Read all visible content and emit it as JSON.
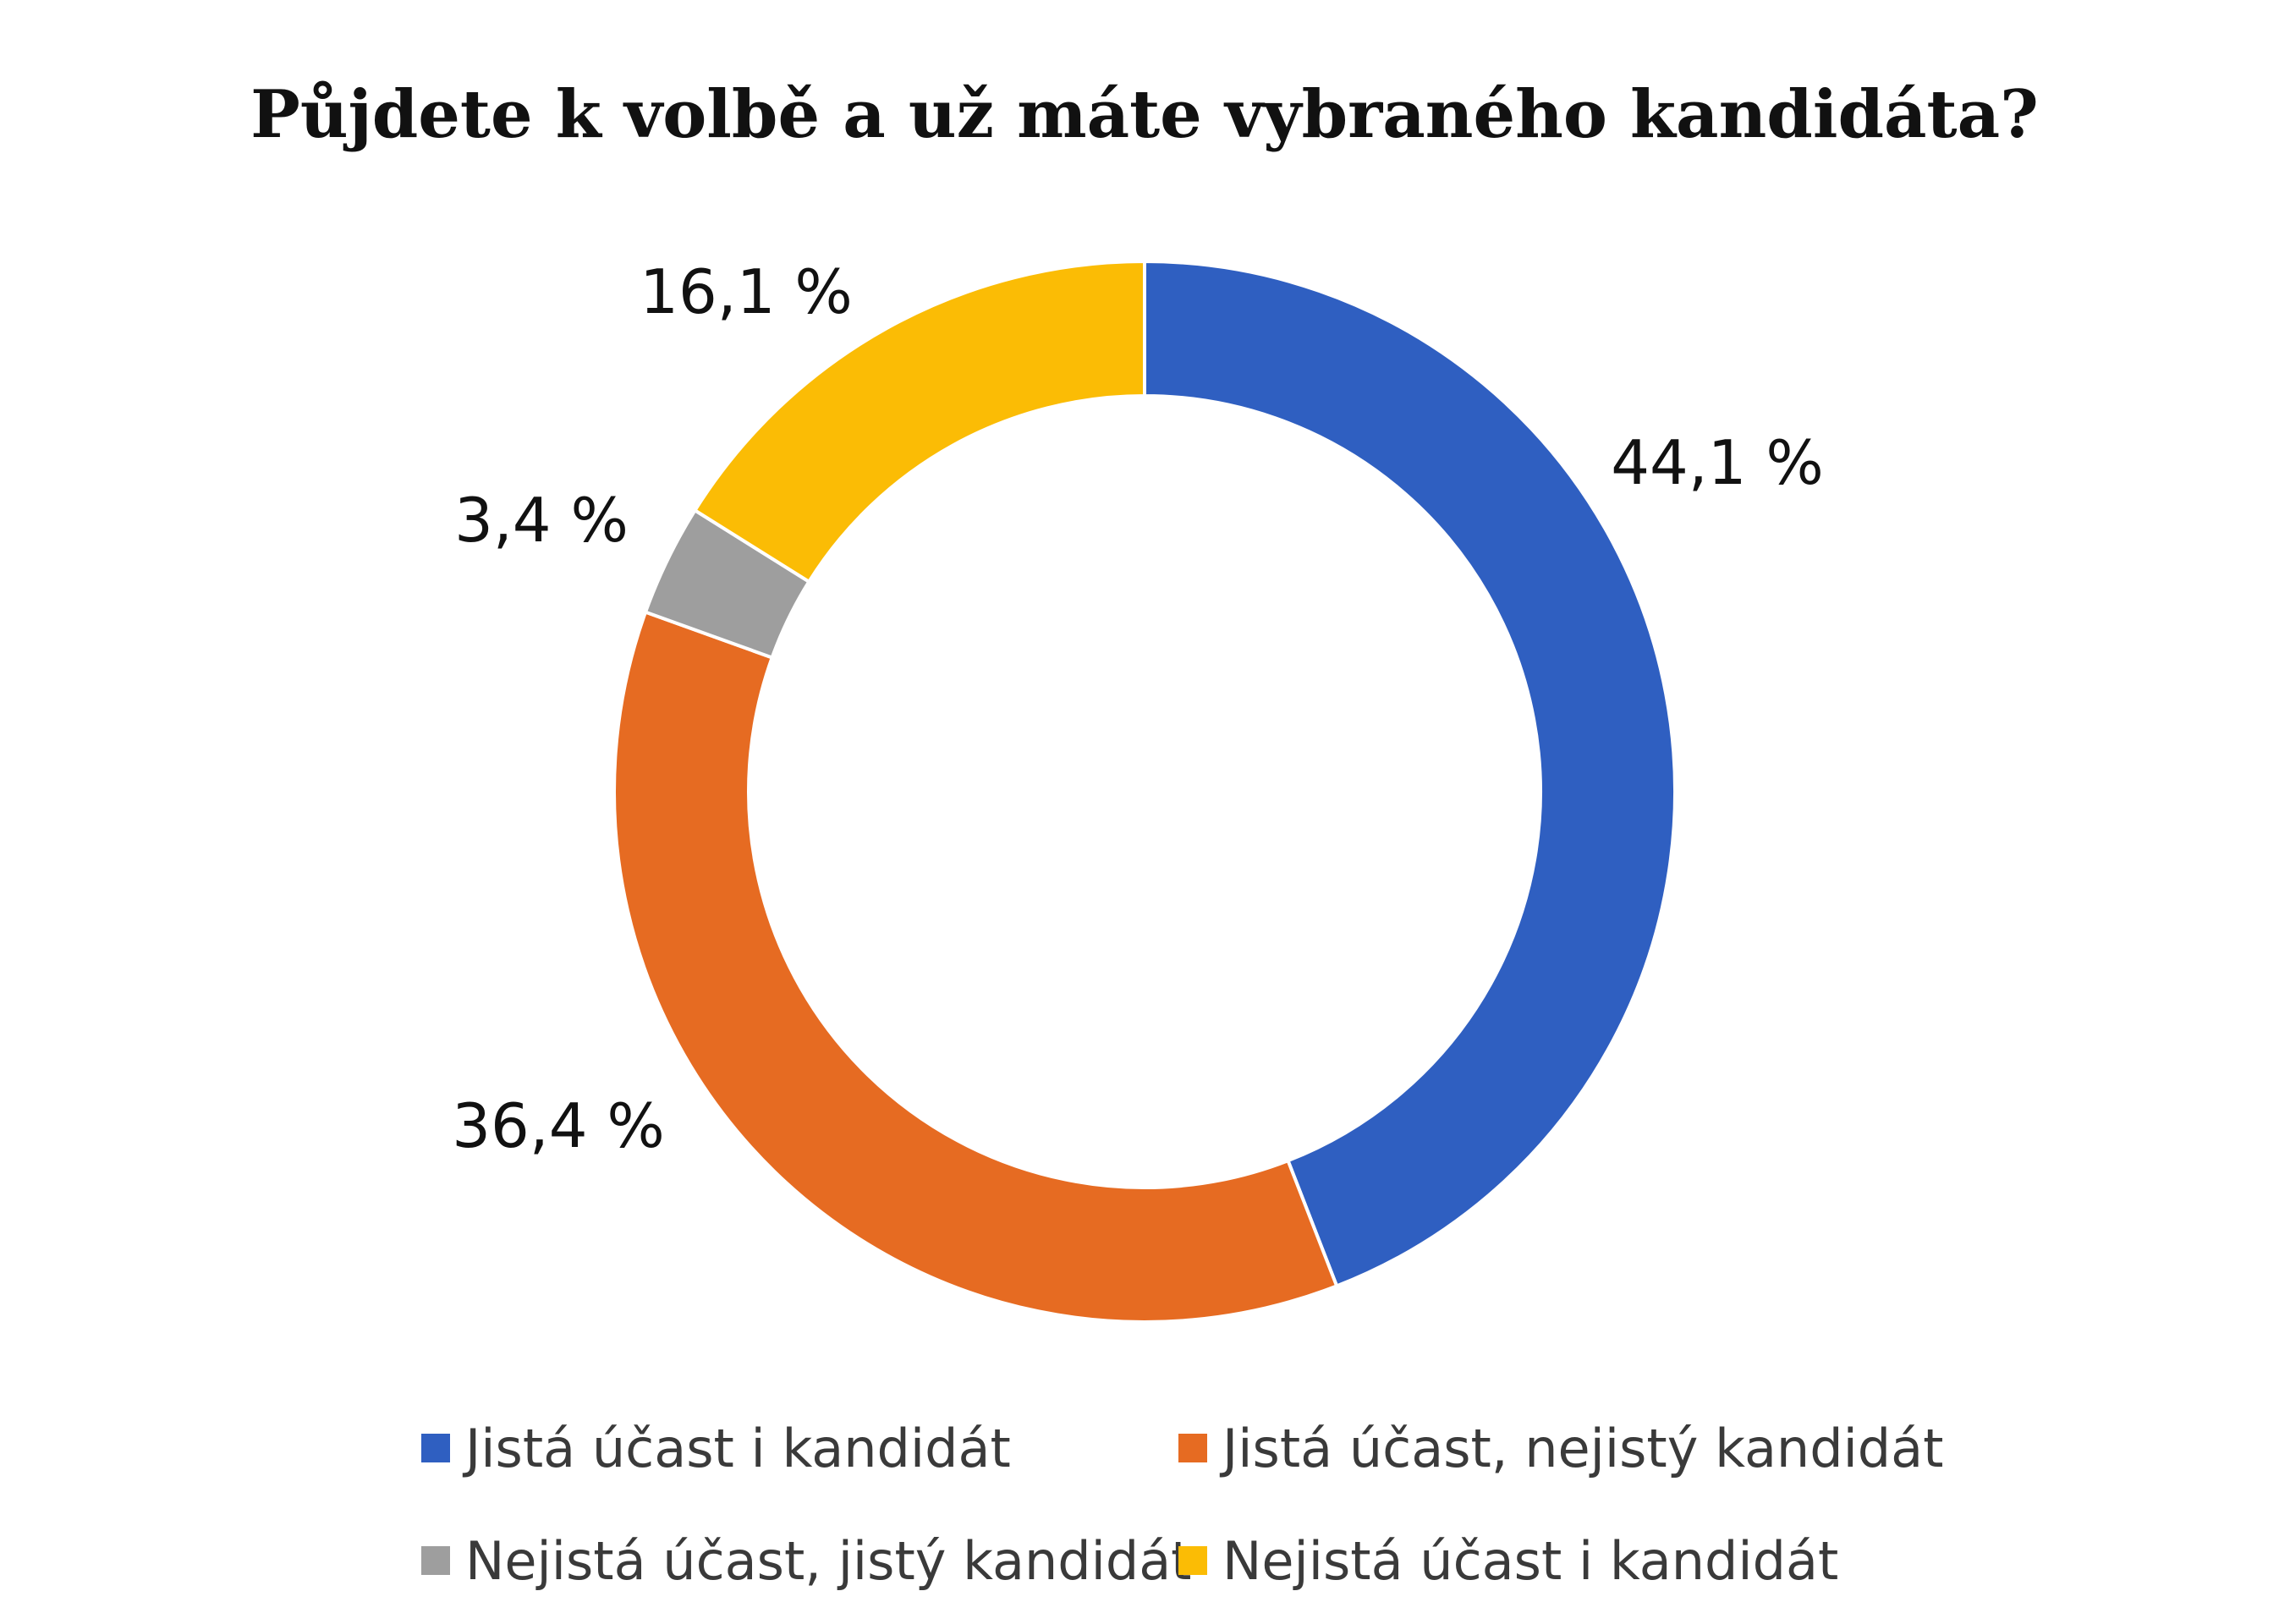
{
  "chart_data": {
    "type": "pie",
    "variant": "donut",
    "title": "Půjdete k volbě a už máte vybraného kandidáta?",
    "categories": [
      "Jistá účast i kandidát",
      "Jistá účast, nejistý kandidát",
      "Nejistá účast, jistý kandidát",
      "Nejistá účast i kandidát"
    ],
    "values": [
      44.1,
      36.4,
      3.4,
      16.1
    ],
    "value_labels": [
      "44,1 %",
      "36,4 %",
      "3,4 %",
      "16,1 %"
    ],
    "colors": [
      "#2f5fc1",
      "#e66b22",
      "#9e9e9e",
      "#fbbc05"
    ],
    "start_angle": "12 o'clock",
    "direction": "clockwise",
    "legend_position": "bottom"
  }
}
